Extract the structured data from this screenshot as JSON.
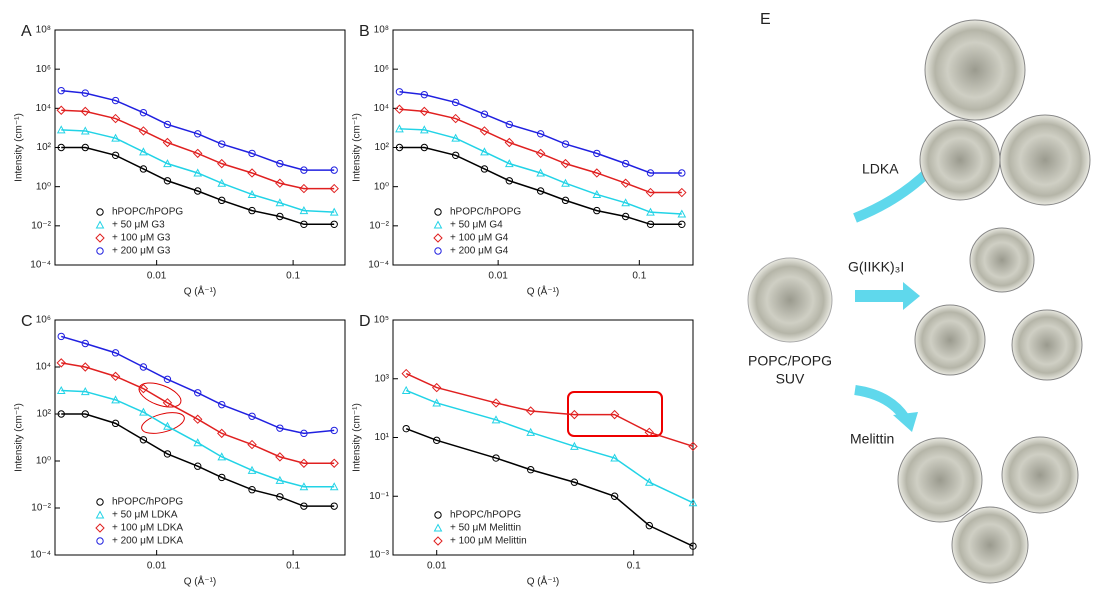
{
  "chart_data": [
    {
      "type": "line",
      "panel_label": "A",
      "xlabel": "Q (Å⁻¹)",
      "ylabel": "Intensity (cm⁻¹)",
      "xscale": "log",
      "yscale": "log",
      "legend": "lower left",
      "xlim": [
        0.0018,
        0.24
      ],
      "ylim": [
        0.0001,
        100000000
      ],
      "xticks": [
        0.01,
        0.1
      ],
      "yticks": [
        {
          "value": 0.0001,
          "label": "10⁻⁴"
        },
        {
          "value": 0.01,
          "label": "10⁻²"
        },
        {
          "value": 1,
          "label": "10⁰"
        },
        {
          "value": 100,
          "label": "10²"
        },
        {
          "value": 10000,
          "label": "10⁴"
        },
        {
          "value": 1000000,
          "label": "10⁶"
        },
        {
          "value": 100000000,
          "label": "10⁸"
        }
      ],
      "x": [
        0.002,
        0.003,
        0.005,
        0.008,
        0.012,
        0.02,
        0.03,
        0.05,
        0.08,
        0.12,
        0.2
      ],
      "series": [
        {
          "name": "hPOPC/hPOPG",
          "color": "#000000",
          "marker": "circle",
          "values": [
            100,
            100,
            40,
            8,
            2,
            0.6,
            0.2,
            0.06,
            0.03,
            0.012,
            0.012
          ]
        },
        {
          "name": "+ 50 μM G3",
          "color": "#22d3e6",
          "marker": "triangle",
          "values": [
            800,
            700,
            300,
            60,
            15,
            5,
            1.5,
            0.4,
            0.15,
            0.06,
            0.05
          ]
        },
        {
          "name": "+ 100 μM G3",
          "color": "#e02020",
          "marker": "diamond",
          "values": [
            8000,
            7000,
            3000,
            700,
            180,
            50,
            15,
            5,
            1.5,
            0.8,
            0.8
          ]
        },
        {
          "name": "+ 200 μM G3",
          "color": "#2020e0",
          "marker": "circle",
          "values": [
            80000,
            60000,
            25000,
            6000,
            1500,
            500,
            150,
            50,
            15,
            7,
            7
          ]
        }
      ]
    },
    {
      "type": "line",
      "panel_label": "B",
      "xlabel": "Q (Å⁻¹)",
      "ylabel": "Intensity (cm⁻¹)",
      "xscale": "log",
      "yscale": "log",
      "legend": "lower left",
      "xlim": [
        0.0018,
        0.24
      ],
      "ylim": [
        0.0001,
        100000000
      ],
      "xticks": [
        0.01,
        0.1
      ],
      "yticks": [
        {
          "value": 0.0001,
          "label": "10⁻⁴"
        },
        {
          "value": 0.01,
          "label": "10⁻²"
        },
        {
          "value": 1,
          "label": "10⁰"
        },
        {
          "value": 100,
          "label": "10²"
        },
        {
          "value": 10000,
          "label": "10⁴"
        },
        {
          "value": 1000000,
          "label": "10⁶"
        },
        {
          "value": 100000000,
          "label": "10⁸"
        }
      ],
      "x": [
        0.002,
        0.003,
        0.005,
        0.008,
        0.012,
        0.02,
        0.03,
        0.05,
        0.08,
        0.12,
        0.2
      ],
      "series": [
        {
          "name": "hPOPC/hPOPG",
          "color": "#000000",
          "marker": "circle",
          "values": [
            100,
            100,
            40,
            8,
            2,
            0.6,
            0.2,
            0.06,
            0.03,
            0.012,
            0.012
          ]
        },
        {
          "name": "+ 50 μM G4",
          "color": "#22d3e6",
          "marker": "triangle",
          "values": [
            900,
            800,
            300,
            60,
            15,
            5,
            1.5,
            0.4,
            0.15,
            0.05,
            0.04
          ]
        },
        {
          "name": "+ 100 μM G4",
          "color": "#e02020",
          "marker": "diamond",
          "values": [
            9000,
            7000,
            3000,
            700,
            180,
            50,
            15,
            5,
            1.5,
            0.5,
            0.5
          ]
        },
        {
          "name": "+ 200 μM G4",
          "color": "#2020e0",
          "marker": "circle",
          "values": [
            70000,
            50000,
            20000,
            5000,
            1500,
            500,
            150,
            50,
            15,
            5,
            5
          ]
        }
      ]
    },
    {
      "type": "line",
      "panel_label": "C",
      "xlabel": "Q (Å⁻¹)",
      "ylabel": "Intensity (cm⁻¹)",
      "xscale": "log",
      "yscale": "log",
      "legend": "lower left",
      "xlim": [
        0.0018,
        0.24
      ],
      "ylim": [
        0.0001,
        1000000
      ],
      "xticks": [
        0.01,
        0.1
      ],
      "yticks": [
        {
          "value": 0.0001,
          "label": "10⁻⁴"
        },
        {
          "value": 0.01,
          "label": "10⁻²"
        },
        {
          "value": 1,
          "label": "10⁰"
        },
        {
          "value": 100,
          "label": "10²"
        },
        {
          "value": 10000,
          "label": "10⁴"
        },
        {
          "value": 1000000,
          "label": "10⁶"
        }
      ],
      "x": [
        0.002,
        0.003,
        0.005,
        0.008,
        0.012,
        0.02,
        0.03,
        0.05,
        0.08,
        0.12,
        0.2
      ],
      "series": [
        {
          "name": "hPOPC/hPOPG",
          "color": "#000000",
          "marker": "circle",
          "values": [
            100,
            100,
            40,
            8,
            2,
            0.6,
            0.2,
            0.06,
            0.03,
            0.012,
            0.012
          ]
        },
        {
          "name": "+ 50 μM LDKA",
          "color": "#22d3e6",
          "marker": "triangle",
          "values": [
            1000,
            900,
            400,
            120,
            30,
            6,
            1.5,
            0.4,
            0.15,
            0.08,
            0.08
          ]
        },
        {
          "name": "+ 100 μM LDKA",
          "color": "#e02020",
          "marker": "diamond",
          "values": [
            15000,
            10000,
            4000,
            1200,
            300,
            60,
            15,
            5,
            1.5,
            0.8,
            0.8
          ]
        },
        {
          "name": "+ 200 μM LDKA",
          "color": "#2020e0",
          "marker": "circle",
          "values": [
            200000,
            100000,
            40000,
            10000,
            3000,
            800,
            250,
            80,
            25,
            15,
            20
          ]
        }
      ]
    },
    {
      "type": "line",
      "panel_label": "D",
      "xlabel": "Q (Å⁻¹)",
      "ylabel": "Intensity (cm⁻¹)",
      "xscale": "log",
      "yscale": "log",
      "legend": "lower left",
      "xlim": [
        0.006,
        0.2
      ],
      "ylim": [
        0.001,
        100000
      ],
      "xticks": [
        0.01,
        0.1
      ],
      "yticks": [
        {
          "value": 0.001,
          "label": "10⁻³"
        },
        {
          "value": 0.1,
          "label": "10⁻¹"
        },
        {
          "value": 10,
          "label": "10¹"
        },
        {
          "value": 1000,
          "label": "10³"
        },
        {
          "value": 100000,
          "label": "10⁵"
        }
      ],
      "x": [
        0.007,
        0.01,
        0.02,
        0.03,
        0.05,
        0.08,
        0.12,
        0.2
      ],
      "series": [
        {
          "name": "hPOPC/hPOPG",
          "color": "#000000",
          "marker": "circle",
          "values": [
            20,
            8,
            2,
            0.8,
            0.3,
            0.1,
            0.01,
            0.002
          ]
        },
        {
          "name": "+ 50 μM Melittin",
          "color": "#22d3e6",
          "marker": "triangle",
          "values": [
            400,
            150,
            40,
            15,
            5,
            2,
            0.3,
            0.06
          ]
        },
        {
          "name": "+ 100 μM Melittin",
          "color": "#e02020",
          "marker": "diamond",
          "values": [
            1500,
            500,
            150,
            80,
            60,
            60,
            15,
            5
          ]
        }
      ]
    }
  ],
  "diagram": {
    "panel_label": "E",
    "arrows": [
      "LDKA",
      "G(IIKK)₃I",
      "Melittin"
    ],
    "vesicle": "POPC/POPG",
    "vesicle_type": "SUV"
  }
}
